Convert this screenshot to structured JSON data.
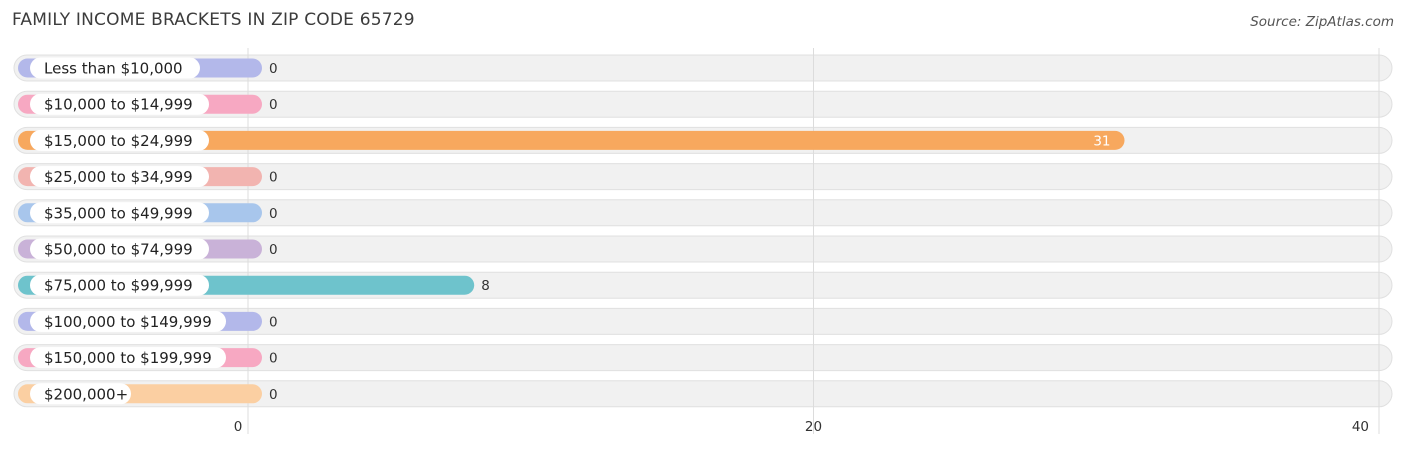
{
  "chart_data": {
    "type": "bar",
    "orientation": "horizontal",
    "title": "FAMILY INCOME BRACKETS IN ZIP CODE 65729",
    "source": "Source: ZipAtlas.com",
    "categories": [
      "Less than $10,000",
      "$10,000 to $14,999",
      "$15,000 to $24,999",
      "$25,000 to $34,999",
      "$35,000 to $49,999",
      "$50,000 to $74,999",
      "$75,000 to $99,999",
      "$100,000 to $149,999",
      "$150,000 to $199,999",
      "$200,000+"
    ],
    "values": [
      0,
      0,
      31,
      0,
      0,
      0,
      8,
      0,
      0,
      0
    ],
    "colors": [
      "#b3b8ea",
      "#f7a8c2",
      "#f7a85e",
      "#f2b4b0",
      "#a8c6ec",
      "#c9b2d8",
      "#6ec3cc",
      "#b3b8ea",
      "#f7a8c2",
      "#fbcfa2"
    ],
    "xlim": [
      0,
      40
    ],
    "xticks": [
      "0",
      "20",
      "40"
    ],
    "grid": true,
    "legend": "none"
  }
}
